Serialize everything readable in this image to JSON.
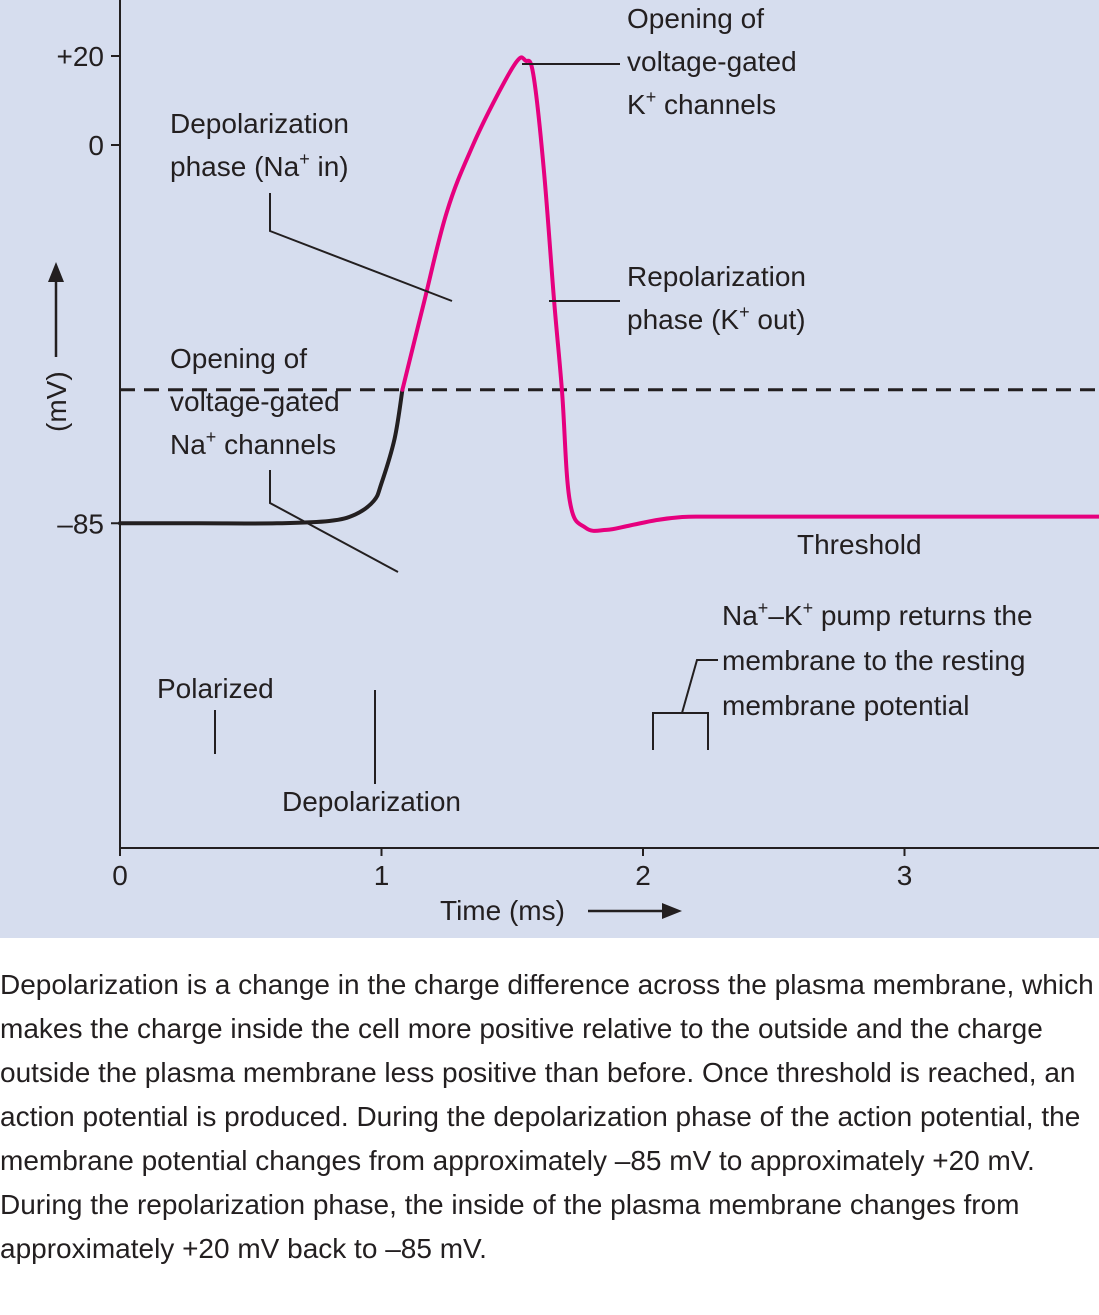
{
  "chart_data": {
    "type": "line",
    "xlabel": "Time (ms)",
    "ylabel": "(mV)",
    "x_ticks": [
      "0",
      "1",
      "2",
      "3"
    ],
    "y_ticks": [
      "+20",
      "0",
      "–85"
    ],
    "xlim": [
      0,
      3.75
    ],
    "ylim": [
      -101,
      32
    ],
    "threshold": {
      "label": "Threshold",
      "value": -55
    },
    "series": [
      {
        "color": "#231f20",
        "x": [
          0,
          0.3,
          0.6,
          0.8,
          0.9,
          0.97,
          1.0,
          1.05,
          1.08
        ],
        "y": [
          -85,
          -85,
          -85,
          -84.5,
          -83,
          -80,
          -76,
          -66,
          -55
        ]
      },
      {
        "color": "#e6007e",
        "x": [
          1.08,
          1.16,
          1.25,
          1.35,
          1.45,
          1.52,
          1.55,
          1.58,
          1.62,
          1.66,
          1.69,
          1.72,
          1.78,
          1.86,
          1.95,
          2.05,
          2.15,
          2.25,
          2.5,
          3.0,
          3.75
        ],
        "y": [
          -55,
          -36,
          -15,
          0,
          12,
          19,
          19,
          16,
          -5,
          -35,
          -55,
          -80,
          -86,
          -86.5,
          -85.5,
          -84.3,
          -83.6,
          -83.5,
          -83.5,
          -83.5,
          -83.5
        ]
      }
    ],
    "annotations": {
      "opening_k": [
        "Opening of",
        "voltage-gated",
        "K",
        "+",
        " channels"
      ],
      "depol_phase": [
        "Depolarization",
        "phase (Na",
        "+",
        " in)"
      ],
      "repol_phase": [
        "Repolarization",
        "phase (K",
        "+",
        " out)"
      ],
      "opening_na": [
        "Opening of",
        "voltage-gated",
        "Na",
        "+",
        " channels"
      ],
      "pump": [
        "Na",
        "+",
        "–K",
        "+",
        " pump returns the",
        "membrane to the resting",
        "membrane potential"
      ],
      "polarized": "Polarized",
      "depolarization": "Depolarization"
    },
    "colors": {
      "background": "#d6ddee",
      "action_potential": "#e6007e",
      "baseline": "#231f20"
    }
  },
  "caption": "Depolarization is a change in the charge difference across the plasma membrane, which makes the charge inside the cell more positive relative to the outside and the charge outside the plasma membrane less positive than before. Once threshold is reached, an action potential is produced. During the depolarization phase of the action potential, the membrane potential changes from approximately –85 mV to approximately +20 mV. During the repolarization phase, the inside of the plasma  membrane changes from approximately +20 mV back to –85 mV."
}
